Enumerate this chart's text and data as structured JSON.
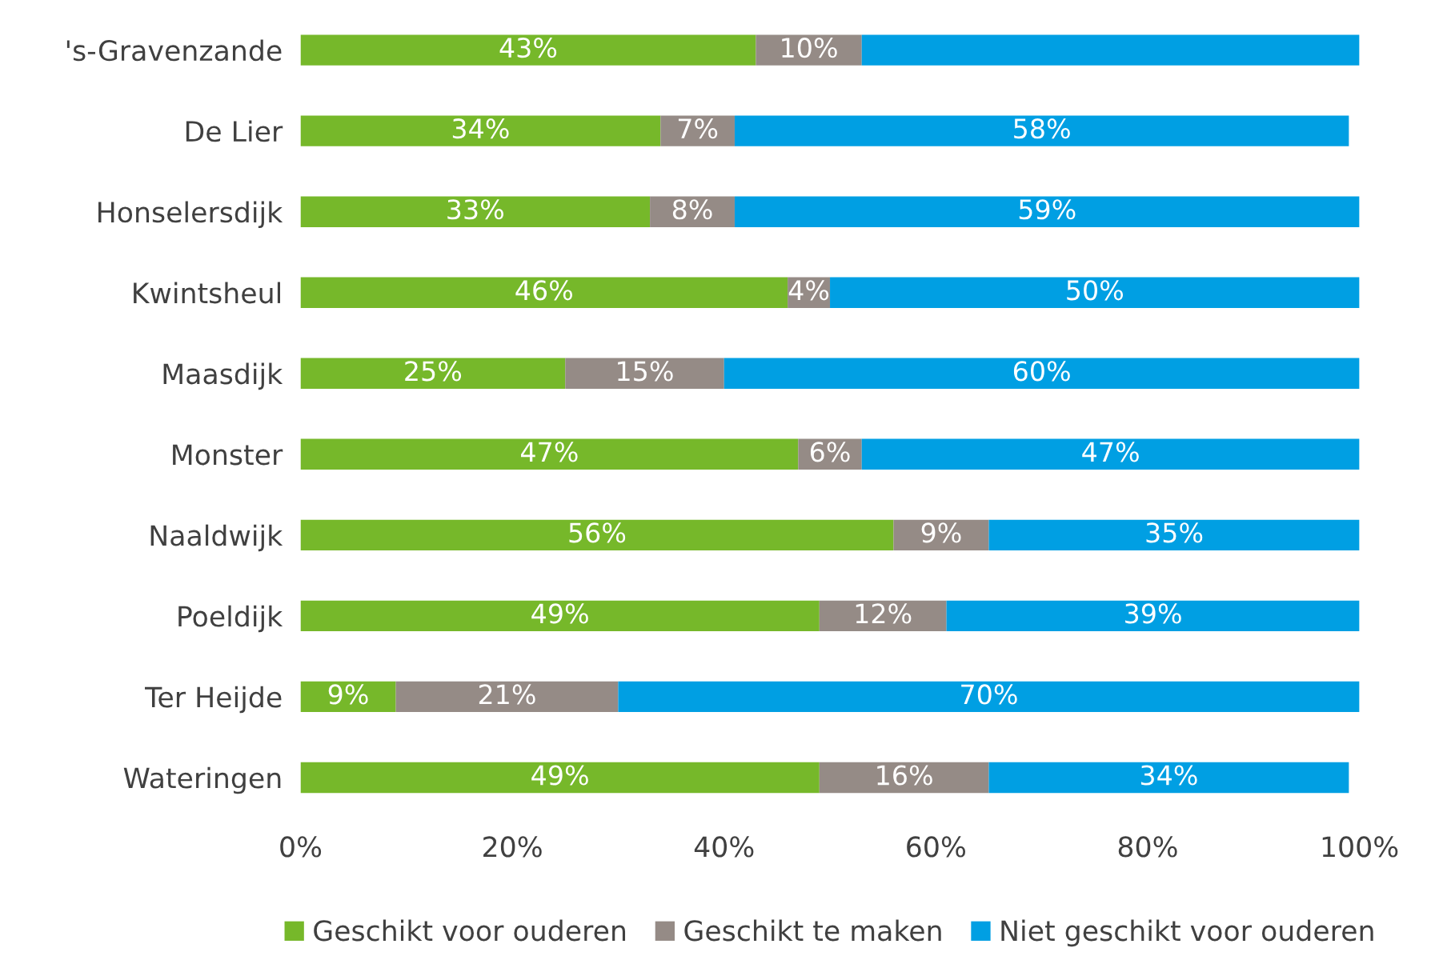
{
  "chart_data": {
    "type": "bar",
    "orientation": "horizontal",
    "stacked": true,
    "categories": [
      "'s-Gravenzande",
      "De Lier",
      "Honselersdijk",
      "Kwintsheul",
      "Maasdijk",
      "Monster",
      "Naaldwijk",
      "Poeldijk",
      "Ter Heijde",
      "Wateringen"
    ],
    "series": [
      {
        "name": "Geschikt voor ouderen",
        "color": "#76b82a",
        "values": [
          43,
          34,
          33,
          46,
          25,
          47,
          56,
          49,
          9,
          49
        ],
        "value_labels": [
          "43%",
          "34%",
          "33%",
          "46%",
          "25%",
          "47%",
          "56%",
          "49%",
          "9%",
          "49%"
        ]
      },
      {
        "name": "Geschikt te maken",
        "color": "#958b86",
        "values": [
          10,
          7,
          8,
          4,
          15,
          6,
          9,
          12,
          21,
          16
        ],
        "value_labels": [
          "10%",
          "7%",
          "8%",
          "4%",
          "15%",
          "6%",
          "9%",
          "12%",
          "21%",
          "16%"
        ]
      },
      {
        "name": "Niet geschikt voor ouderen",
        "color": "#009fe3",
        "values": [
          47,
          58,
          59,
          50,
          60,
          47,
          35,
          39,
          70,
          34
        ],
        "value_labels": [
          null,
          "58%",
          "59%",
          "50%",
          "60%",
          "47%",
          "35%",
          "39%",
          "70%",
          "34%"
        ]
      }
    ],
    "xlim": [
      0,
      100
    ],
    "xticks": [
      {
        "value": 0,
        "label": "0%"
      },
      {
        "value": 20,
        "label": "20%"
      },
      {
        "value": 40,
        "label": "40%"
      },
      {
        "value": 60,
        "label": "60%"
      },
      {
        "value": 80,
        "label": "80%"
      },
      {
        "value": 100,
        "label": "100%"
      }
    ],
    "legend": "bottom"
  }
}
